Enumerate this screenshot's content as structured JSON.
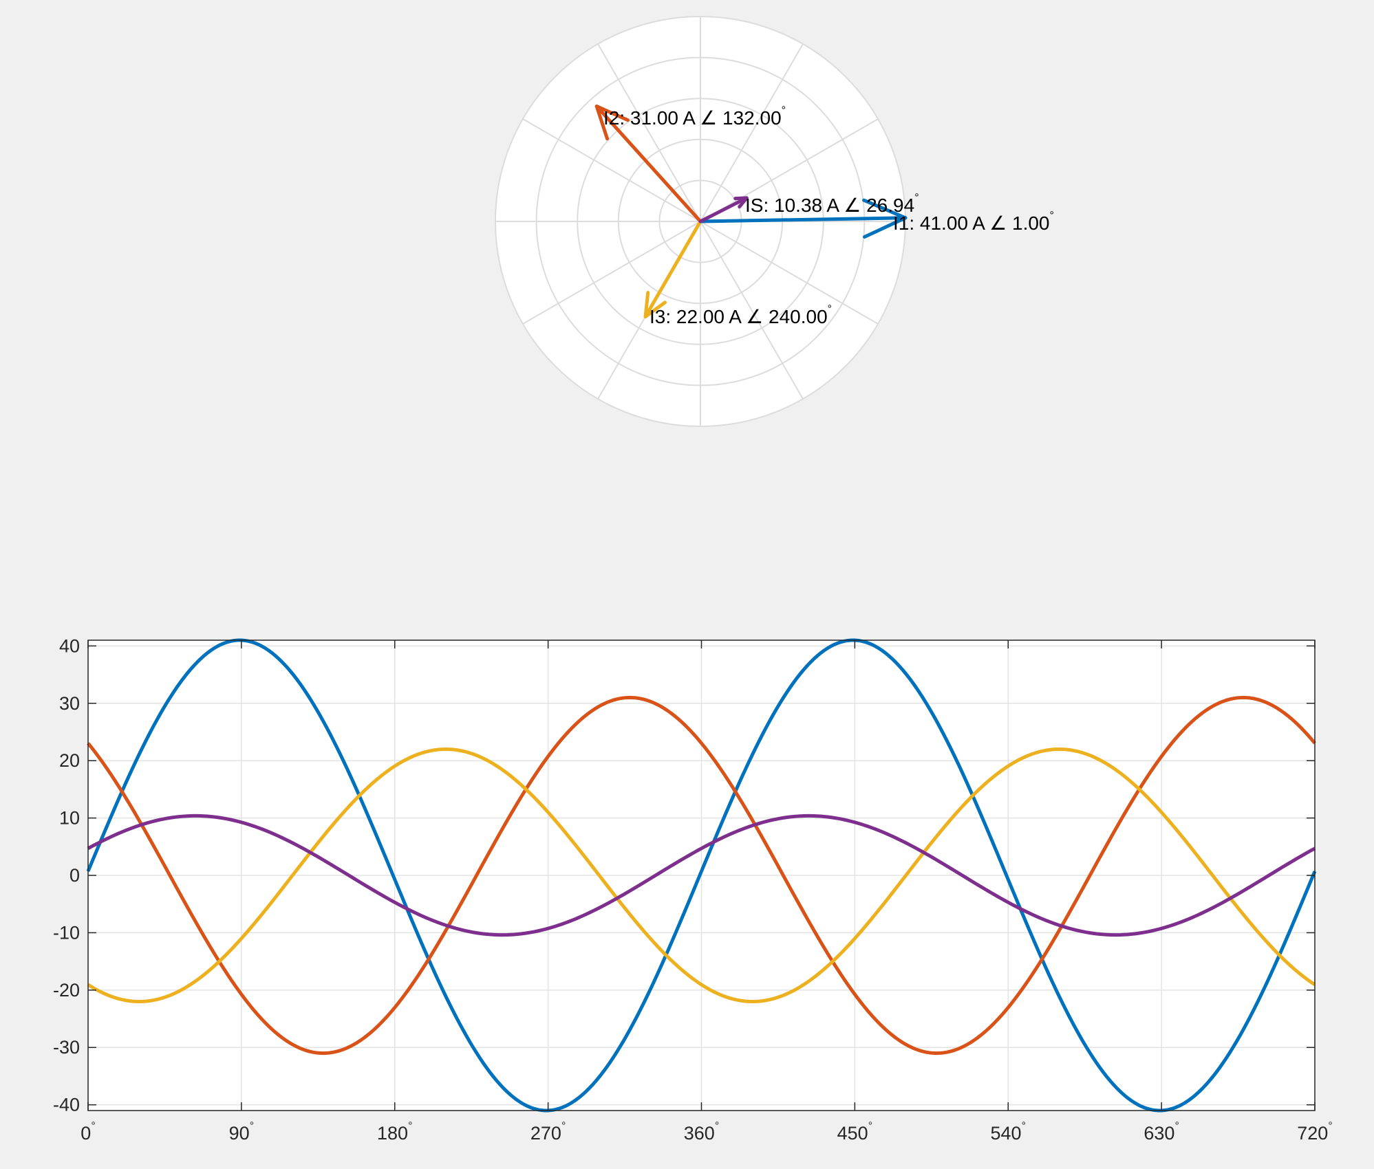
{
  "chart_data": [
    {
      "type": "phasor",
      "grid": true,
      "max_magnitude": 41,
      "colors": {
        "I1": "#0072BD",
        "I2": "#D95319",
        "I3": "#EDB120",
        "IS": "#7E2F8E",
        "grid": "#dcdcdc",
        "background": "#ffffff"
      },
      "series": [
        {
          "name": "I1",
          "magnitude": 41.0,
          "angle_deg": 1.0,
          "label": "I1: 41.00 A ∠ 1.00",
          "color": "#0072BD"
        },
        {
          "name": "I2",
          "magnitude": 31.0,
          "angle_deg": 132.0,
          "label": "I2: 31.00 A ∠ 132.00",
          "color": "#D95319"
        },
        {
          "name": "I3",
          "magnitude": 22.0,
          "angle_deg": 240.0,
          "label": "I3: 22.00 A ∠ 240.00",
          "color": "#EDB120"
        },
        {
          "name": "IS",
          "magnitude": 10.38,
          "angle_deg": 26.94,
          "label": "IS: 10.38 A ∠ 26.94",
          "color": "#7E2F8E"
        }
      ]
    },
    {
      "type": "line",
      "grid": true,
      "xlim": [
        0,
        720
      ],
      "ylim": [
        -41,
        41
      ],
      "x_ticks": [
        0,
        90,
        180,
        270,
        360,
        450,
        540,
        630,
        720
      ],
      "x_tick_labels": [
        "0",
        "90",
        "180",
        "270",
        "360",
        "450",
        "540",
        "630",
        "720"
      ],
      "y_ticks": [
        40,
        30,
        20,
        10,
        0,
        -10,
        -20,
        -30,
        -40
      ],
      "y_tick_labels": [
        "40",
        "30",
        "20",
        "10",
        "0",
        "-10",
        "-20",
        "-30",
        "-40"
      ],
      "degree_symbol": "°",
      "series": [
        {
          "name": "I1",
          "amplitude": 41.0,
          "phase_deg": 1.0,
          "color": "#0072BD"
        },
        {
          "name": "I2",
          "amplitude": 31.0,
          "phase_deg": 132.0,
          "color": "#D95319"
        },
        {
          "name": "I3",
          "amplitude": 22.0,
          "phase_deg": 240.0,
          "color": "#EDB120"
        },
        {
          "name": "IS",
          "amplitude": 10.38,
          "phase_deg": 26.94,
          "color": "#7E2F8E"
        }
      ]
    }
  ]
}
